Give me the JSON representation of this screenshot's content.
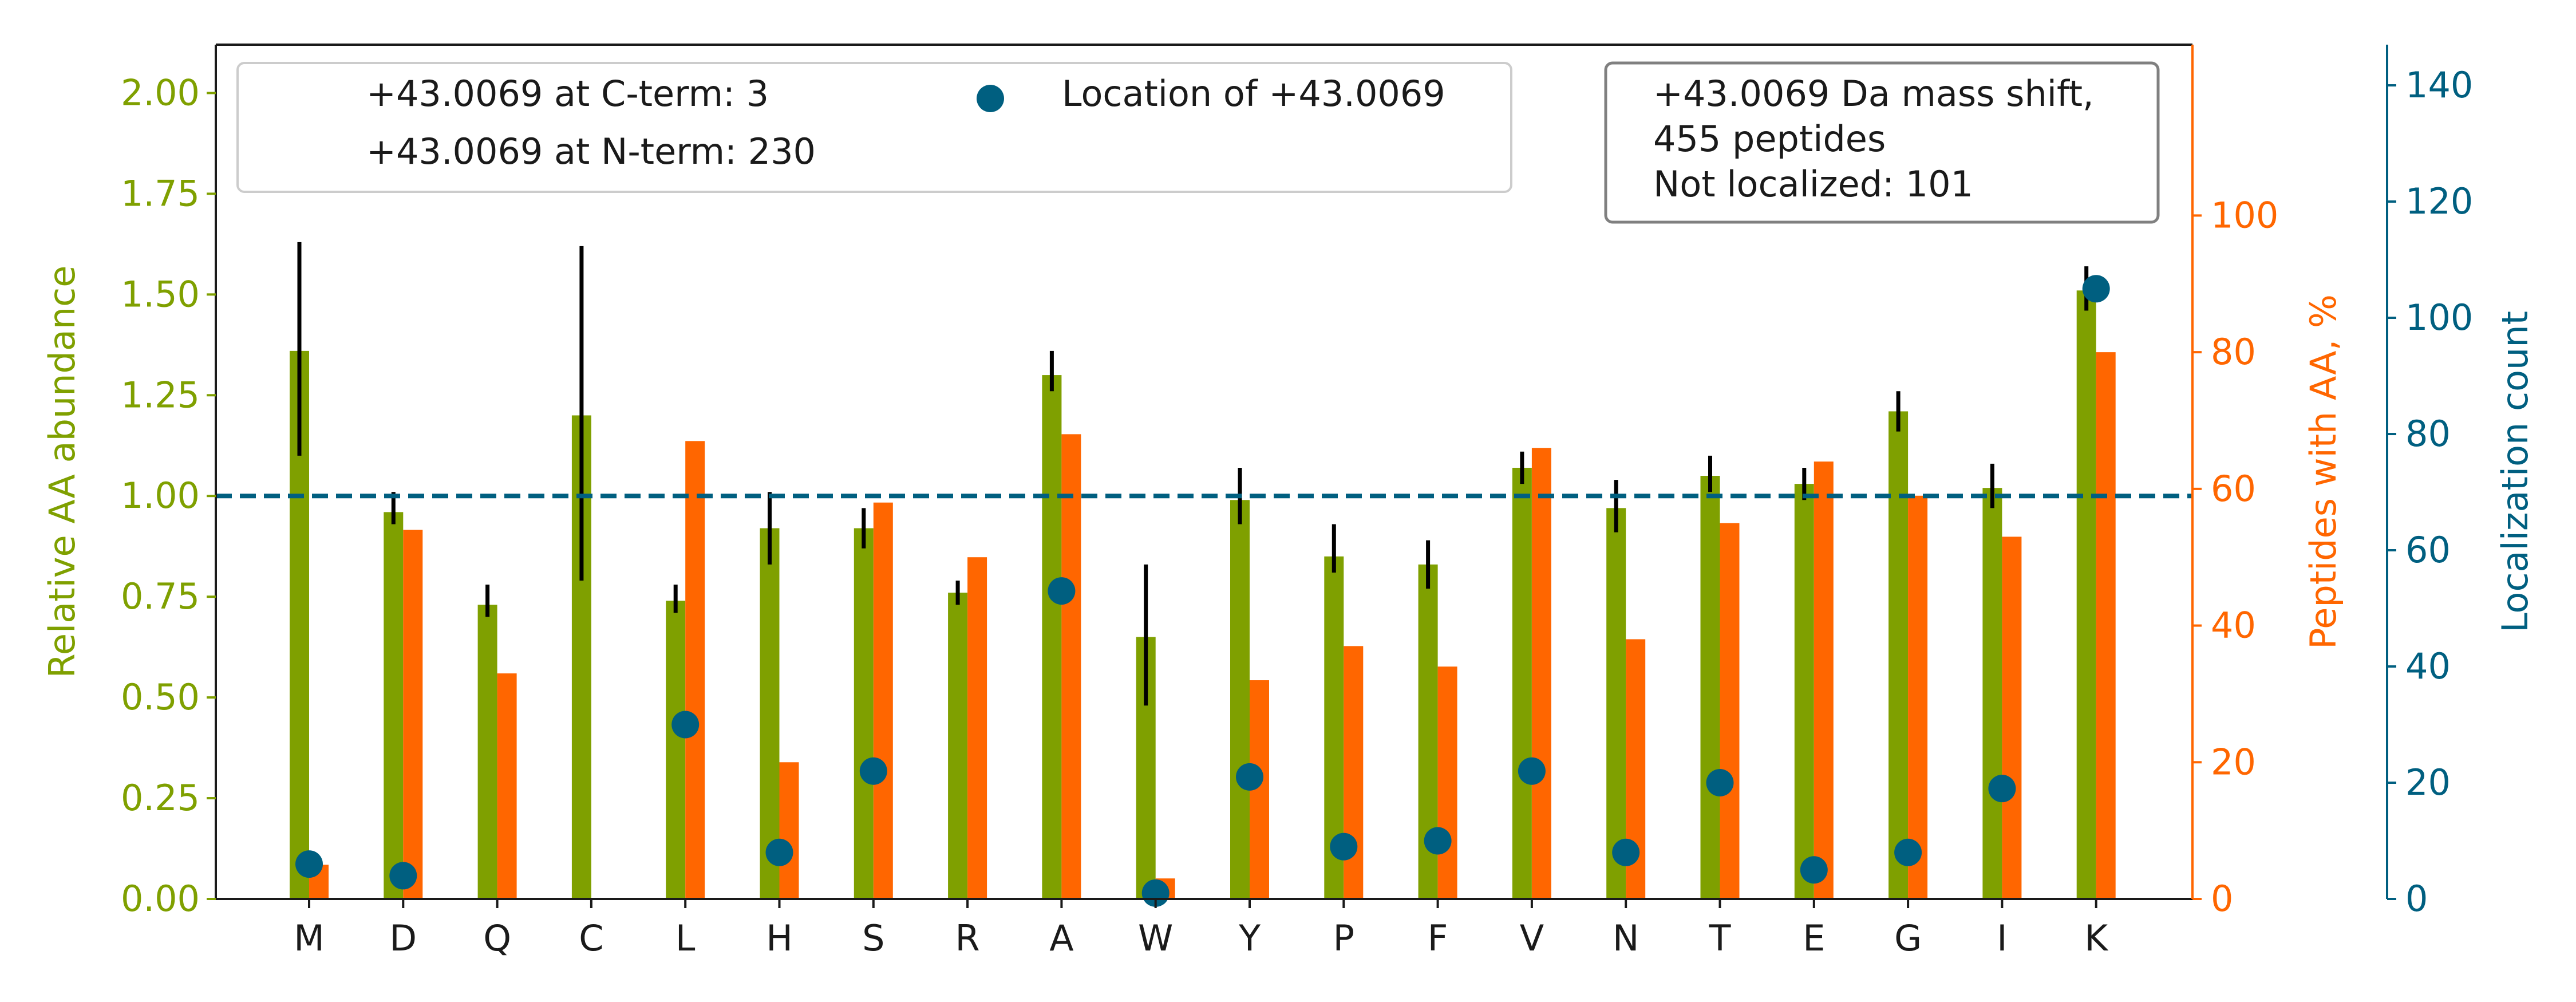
{
  "chart_data": {
    "type": "bar",
    "categories": [
      "M",
      "D",
      "Q",
      "C",
      "L",
      "H",
      "S",
      "R",
      "A",
      "W",
      "Y",
      "P",
      "F",
      "V",
      "N",
      "T",
      "E",
      "G",
      "I",
      "K"
    ],
    "axes": {
      "left": {
        "label": "Relative AA abundance",
        "ylim": [
          0,
          2.12
        ],
        "ticks": [
          "0.00",
          "0.25",
          "0.50",
          "0.75",
          "1.00",
          "1.25",
          "1.50",
          "1.75",
          "2.00"
        ],
        "color": "#7fa000"
      },
      "right": {
        "label": "Peptides with AA, %",
        "ylim": [
          0,
          125
        ],
        "ticks": [
          "0",
          "20",
          "40",
          "60",
          "80",
          "100"
        ],
        "color": "#ff6600"
      },
      "far_right": {
        "label": "Localization count",
        "ylim": [
          0,
          147
        ],
        "ticks": [
          "0",
          "20",
          "40",
          "60",
          "80",
          "100",
          "120",
          "140"
        ],
        "color": "#005f80"
      }
    },
    "series": [
      {
        "axis": "left",
        "kind": "bar",
        "color": "#7fa000",
        "values": [
          1.36,
          0.96,
          0.73,
          1.2,
          0.74,
          0.92,
          0.92,
          0.76,
          1.3,
          0.65,
          0.99,
          0.85,
          0.83,
          1.07,
          0.97,
          1.05,
          1.03,
          1.21,
          1.02,
          1.51
        ],
        "error": [
          [
            1.1,
            1.63
          ],
          [
            0.93,
            1.01
          ],
          [
            0.7,
            0.78
          ],
          [
            0.79,
            1.62
          ],
          [
            0.71,
            0.78
          ],
          [
            0.83,
            1.01
          ],
          [
            0.87,
            0.97
          ],
          [
            0.73,
            0.79
          ],
          [
            1.26,
            1.36
          ],
          [
            0.48,
            0.83
          ],
          [
            0.93,
            1.07
          ],
          [
            0.81,
            0.93
          ],
          [
            0.77,
            0.89
          ],
          [
            1.03,
            1.11
          ],
          [
            0.91,
            1.04
          ],
          [
            1.01,
            1.1
          ],
          [
            0.99,
            1.07
          ],
          [
            1.16,
            1.26
          ],
          [
            0.97,
            1.08
          ],
          [
            1.46,
            1.57
          ]
        ]
      },
      {
        "axis": "right",
        "kind": "bar",
        "color": "#ff6600",
        "values": [
          5,
          54,
          33,
          0,
          67,
          20,
          58,
          50,
          68,
          3,
          32,
          37,
          34,
          66,
          38,
          55,
          64,
          59,
          53,
          80
        ]
      },
      {
        "axis": "far_right",
        "kind": "scatter",
        "name": "Location of +43.0069",
        "color": "#005f80",
        "values": [
          6,
          4,
          null,
          null,
          30,
          8,
          22,
          null,
          53,
          1,
          21,
          9,
          10,
          22,
          8,
          20,
          5,
          8,
          19,
          105
        ]
      }
    ],
    "reference_line": {
      "axis": "left",
      "y": 1.0,
      "style": "dashed",
      "color": "#005f80"
    },
    "legend": {
      "placement": "top-left",
      "items": [
        "+43.0069 at C-term: 3",
        "+43.0069 at N-term: 230",
        "Location of +43.0069"
      ]
    },
    "annotation": {
      "placement": "top-right",
      "lines": [
        "+43.0069 Da mass shift,",
        "455 peptides",
        "Not localized: 101"
      ]
    }
  }
}
